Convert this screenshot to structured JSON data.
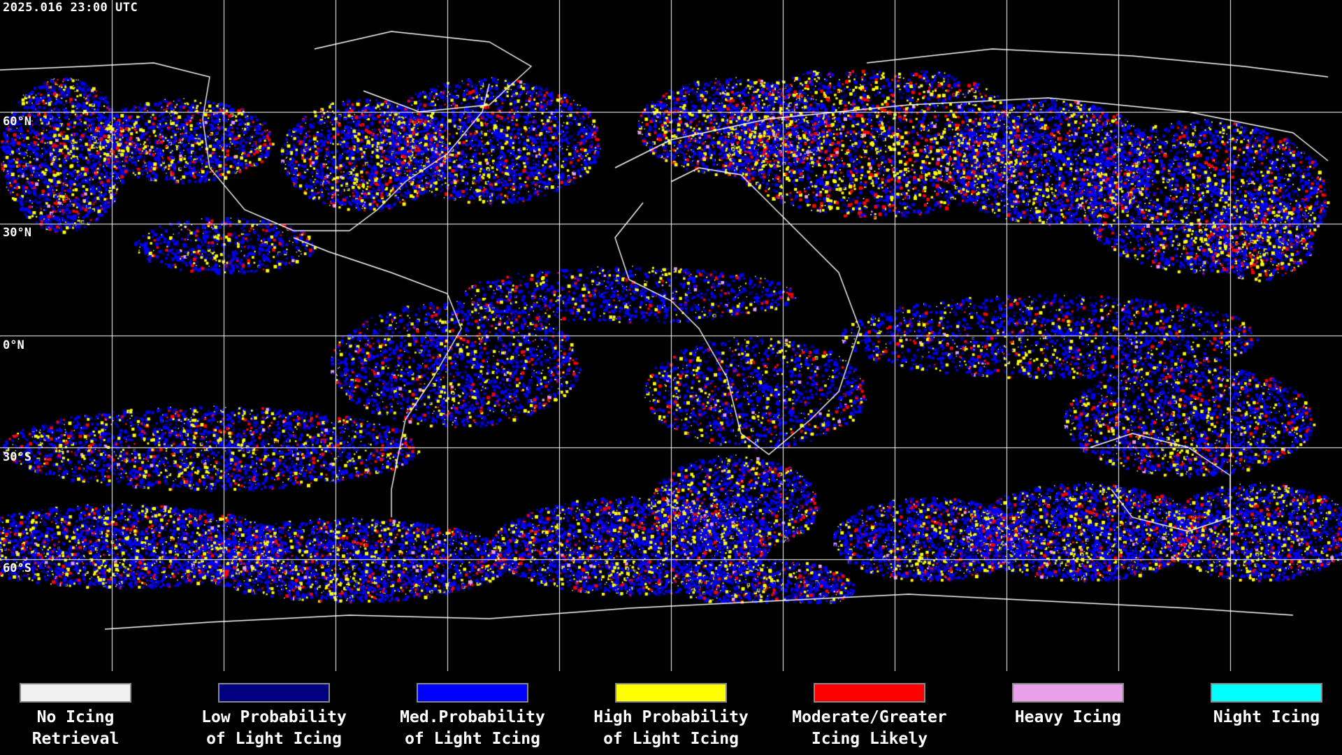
{
  "header": {
    "timestamp": "2025.016 23:00 UTC"
  },
  "map": {
    "background": "#000000",
    "gridline_color": "#ffffff",
    "coastline_color": "#ffffff",
    "lat_labels": [
      {
        "id": "lat-60n",
        "text": "60°N"
      },
      {
        "id": "lat-30n",
        "text": "30°N"
      },
      {
        "id": "lat-0n",
        "text": "0°N"
      },
      {
        "id": "lat-30s",
        "text": "30°S"
      },
      {
        "id": "lat-60s",
        "text": "60°S"
      }
    ]
  },
  "legend": {
    "items": [
      {
        "id": "no-icing",
        "label": "No Icing\nRetrieval",
        "color": "#f0f0f0"
      },
      {
        "id": "low-prob",
        "label": "Low Probability\nof Light Icing",
        "color": "#000080"
      },
      {
        "id": "med-prob",
        "label": "Med.Probability\nof Light Icing",
        "color": "#0000ff"
      },
      {
        "id": "high-prob",
        "label": "High Probability\nof Light Icing",
        "color": "#ffff00"
      },
      {
        "id": "moderate",
        "label": "Moderate/Greater\nIcing Likely",
        "color": "#ff0000"
      },
      {
        "id": "heavy",
        "label": "Heavy Icing",
        "color": "#e8a0e8"
      },
      {
        "id": "night",
        "label": "Night Icing",
        "color": "#00ffff"
      }
    ]
  }
}
